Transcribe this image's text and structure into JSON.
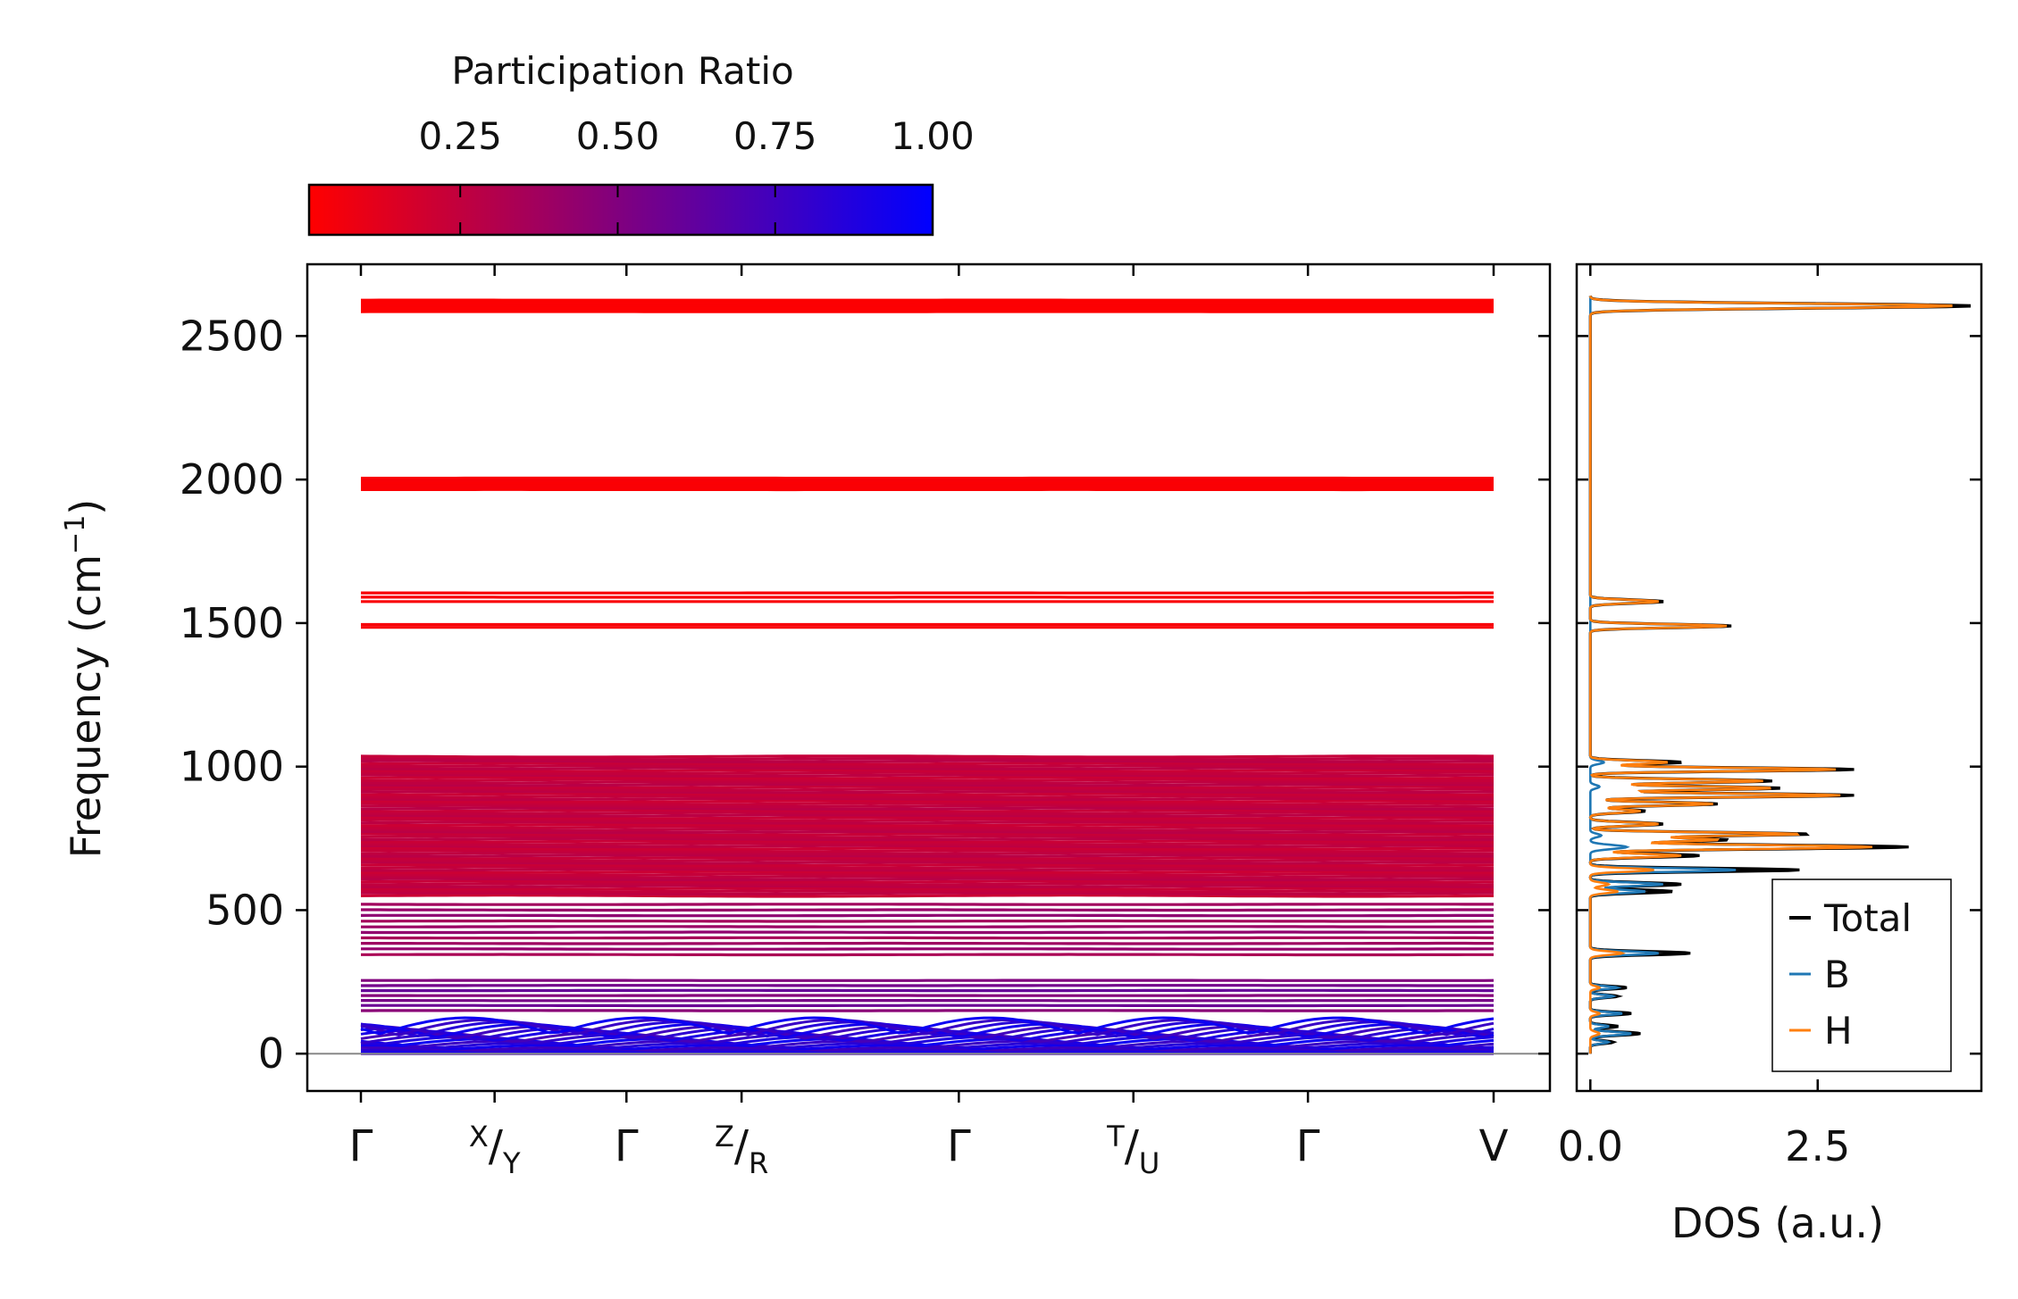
{
  "colorbar": {
    "title": "Participation Ratio",
    "ticks": [
      0.25,
      0.5,
      0.75,
      1.0
    ],
    "tick_labels": [
      "0.25",
      "0.50",
      "0.75",
      "1.00"
    ],
    "range": [
      0.01,
      1.0
    ],
    "colors": {
      "low": "#ff0000",
      "high": "#0000ff"
    }
  },
  "chart_data": [
    {
      "type": "line",
      "name": "phonon band structure",
      "ylabel": "Frequency (cm",
      "ylabel_sup": "−1",
      "ylabel_tail": ")",
      "ylim": [
        -130,
        2750
      ],
      "yticks": [
        0,
        500,
        1000,
        1500,
        2000,
        2500
      ],
      "ytick_labels": [
        "0",
        "500",
        "1000",
        "1500",
        "2000",
        "2500"
      ],
      "xlim": [
        0,
        7
      ],
      "path_ticks": [
        {
          "pos": 0,
          "label": "Γ"
        },
        {
          "pos": 0.72,
          "sup": "X",
          "sub": "Y"
        },
        {
          "pos": 1.43,
          "label": "Γ"
        },
        {
          "pos": 2.05,
          "sup": "Z",
          "sub": "R"
        },
        {
          "pos": 3.22,
          "label": "Γ"
        },
        {
          "pos": 4.16,
          "sup": "T",
          "sub": "U"
        },
        {
          "pos": 5.1,
          "label": "Γ"
        },
        {
          "pos": 6.1,
          "label": "V"
        }
      ],
      "zero_line": 0,
      "band_groups": [
        {
          "range": [
            2585,
            2625
          ],
          "count": 8,
          "pr": 0.02
        },
        {
          "range": [
            1965,
            2005
          ],
          "count": 6,
          "pr": 0.03
        },
        {
          "range": [
            1575,
            1605
          ],
          "count": 3,
          "pr": 0.04
        },
        {
          "range": [
            1485,
            1495
          ],
          "count": 2,
          "pr": 0.04
        },
        {
          "range": [
            550,
            1035
          ],
          "count": 60,
          "pr": 0.25
        },
        {
          "range": [
            345,
            520
          ],
          "count": 10,
          "pr": 0.4
        },
        {
          "range": [
            150,
            255
          ],
          "count": 7,
          "pr": 0.55
        },
        {
          "range": [
            0,
            125
          ],
          "count": 18,
          "pr": 0.85
        }
      ]
    },
    {
      "type": "line",
      "name": "density of states",
      "xlabel": "DOS (a.u.)",
      "xlim": [
        -0.15,
        4.3
      ],
      "xticks": [
        0.0,
        2.5
      ],
      "xtick_labels": [
        "0.0",
        "2.5"
      ],
      "ylim": [
        -130,
        2750
      ],
      "series": [
        {
          "name": "Total",
          "color": "#000000",
          "peaks": [
            [
              2605,
              4.2,
              8
            ],
            [
              1575,
              0.8,
              6
            ],
            [
              1490,
              1.55,
              6
            ],
            [
              1015,
              1.0,
              6
            ],
            [
              990,
              2.9,
              6
            ],
            [
              950,
              2.0,
              6
            ],
            [
              925,
              2.1,
              6
            ],
            [
              900,
              2.9,
              6
            ],
            [
              870,
              1.4,
              6
            ],
            [
              845,
              0.6,
              6
            ],
            [
              800,
              0.8,
              6
            ],
            [
              765,
              2.4,
              6
            ],
            [
              745,
              1.5,
              6
            ],
            [
              720,
              3.5,
              7
            ],
            [
              690,
              1.2,
              6
            ],
            [
              640,
              2.3,
              6
            ],
            [
              590,
              1.0,
              6
            ],
            [
              565,
              0.9,
              6
            ],
            [
              350,
              1.1,
              6
            ],
            [
              230,
              0.4,
              5
            ],
            [
              200,
              0.3,
              5
            ],
            [
              140,
              0.45,
              5
            ],
            [
              95,
              0.3,
              5
            ],
            [
              70,
              0.55,
              6
            ],
            [
              40,
              0.25,
              5
            ]
          ]
        },
        {
          "name": "B",
          "color": "#1f77b4",
          "peaks": [
            [
              1015,
              0.15,
              6
            ],
            [
              930,
              0.1,
              6
            ],
            [
              760,
              0.12,
              6
            ],
            [
              720,
              0.4,
              7
            ],
            [
              640,
              1.6,
              6
            ],
            [
              590,
              0.8,
              6
            ],
            [
              565,
              0.6,
              6
            ],
            [
              350,
              0.75,
              6
            ],
            [
              230,
              0.3,
              5
            ],
            [
              200,
              0.25,
              5
            ],
            [
              140,
              0.35,
              5
            ],
            [
              95,
              0.2,
              5
            ],
            [
              70,
              0.45,
              6
            ],
            [
              40,
              0.2,
              5
            ]
          ]
        },
        {
          "name": "H",
          "color": "#ff7f0e",
          "peaks": [
            [
              2605,
              4.0,
              8
            ],
            [
              1575,
              0.75,
              6
            ],
            [
              1490,
              1.5,
              6
            ],
            [
              1015,
              0.85,
              6
            ],
            [
              990,
              2.7,
              6
            ],
            [
              950,
              1.9,
              6
            ],
            [
              925,
              2.0,
              6
            ],
            [
              900,
              2.75,
              6
            ],
            [
              870,
              1.35,
              6
            ],
            [
              845,
              0.55,
              6
            ],
            [
              800,
              0.75,
              6
            ],
            [
              765,
              2.3,
              6
            ],
            [
              745,
              1.4,
              6
            ],
            [
              720,
              3.1,
              7
            ],
            [
              690,
              1.0,
              6
            ],
            [
              640,
              0.7,
              6
            ],
            [
              590,
              0.2,
              6
            ],
            [
              565,
              0.3,
              6
            ],
            [
              350,
              0.35,
              6
            ],
            [
              230,
              0.1,
              5
            ],
            [
              140,
              0.1,
              5
            ],
            [
              70,
              0.1,
              6
            ]
          ]
        }
      ],
      "legend": {
        "placement": "lower-right",
        "entries": [
          "Total",
          "B",
          "H"
        ]
      }
    }
  ]
}
